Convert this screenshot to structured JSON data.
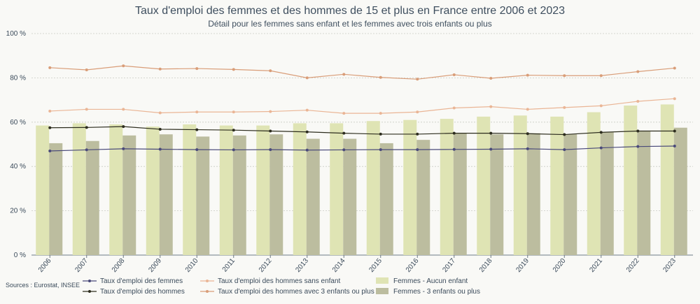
{
  "chart_data": {
    "type": "bar",
    "title": "Taux d'emploi des femmes et des hommes de 15 et plus en France entre 2006 et 2023",
    "subtitle": "Détail pour les femmes sans enfant et les femmes avec trois enfants ou plus",
    "source": "Sources : Eurostat, INSEE",
    "xlabel": "",
    "ylabel": "",
    "ylim": [
      0,
      100
    ],
    "y_ticks": [
      0,
      20,
      40,
      60,
      80,
      100
    ],
    "y_tick_labels": [
      "0 %",
      "20 %",
      "40 %",
      "60 %",
      "80 %",
      "100 %"
    ],
    "grid": true,
    "legend_position": "bottom",
    "categories": [
      "2006",
      "2007",
      "2008",
      "2009",
      "2010",
      "2011",
      "2012",
      "2013",
      "2014",
      "2015",
      "2016",
      "2017",
      "2018",
      "2019",
      "2020",
      "2021",
      "2022",
      "2023"
    ],
    "bar_series": [
      {
        "name": "Femmes - Aucun enfant",
        "color": "#dfe4b4",
        "values": [
          58.5,
          59.5,
          59.0,
          58.0,
          59.0,
          58.5,
          58.5,
          59.5,
          59.5,
          60.5,
          61.0,
          61.5,
          62.5,
          63.0,
          62.5,
          64.5,
          67.5,
          68.0
        ]
      },
      {
        "name": "Femmes - 3 enfants ou plus",
        "color": "#bcbd9f",
        "values": [
          50.5,
          51.5,
          54.0,
          54.5,
          53.5,
          54.0,
          54.5,
          52.5,
          52.5,
          50.5,
          52.0,
          55.0,
          54.5,
          55.0,
          54.5,
          55.5,
          56.0,
          57.5
        ]
      }
    ],
    "line_series": [
      {
        "name": "Taux d'emploi des femmes",
        "color": "#4a4a7a",
        "values": [
          47.0,
          47.5,
          48.0,
          47.8,
          47.6,
          47.5,
          47.6,
          47.4,
          47.5,
          47.6,
          47.6,
          47.7,
          47.8,
          48.0,
          47.6,
          48.4,
          49.0,
          49.2
        ]
      },
      {
        "name": "Taux d'emploi des hommes",
        "color": "#2d2d1e",
        "values": [
          57.5,
          57.6,
          58.0,
          56.8,
          56.6,
          56.4,
          56.0,
          55.6,
          55.0,
          54.6,
          54.6,
          55.0,
          55.0,
          54.8,
          54.4,
          55.4,
          56.0,
          56.0
        ]
      },
      {
        "name": "Taux d'emploi des hommes sans enfant",
        "color": "#eab595",
        "values": [
          65.0,
          65.8,
          65.8,
          64.2,
          64.6,
          64.6,
          64.8,
          65.4,
          64.0,
          64.0,
          64.6,
          66.4,
          67.0,
          65.8,
          66.6,
          67.4,
          69.4,
          70.6
        ]
      },
      {
        "name": "Taux d'emploi des hommes avec 3 enfants ou plus",
        "color": "#d99d78",
        "values": [
          84.6,
          83.6,
          85.4,
          84.0,
          84.2,
          83.8,
          83.2,
          80.0,
          81.6,
          80.2,
          79.4,
          81.4,
          79.8,
          81.2,
          81.0,
          81.0,
          82.8,
          84.4
        ]
      }
    ]
  }
}
